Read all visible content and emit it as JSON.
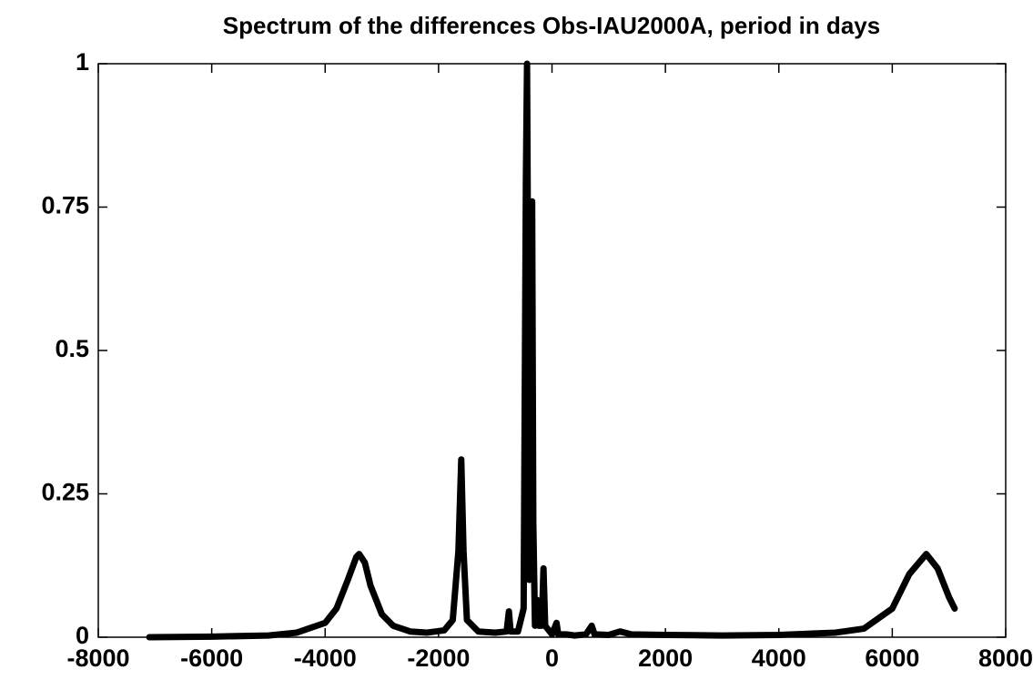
{
  "chart_data": {
    "type": "line",
    "title": "Spectrum of the differences Obs-IAU2000A, period in days",
    "x": [
      -7100,
      -6000,
      -5000,
      -4500,
      -4000,
      -3800,
      -3600,
      -3450,
      -3400,
      -3300,
      -3200,
      -3000,
      -2800,
      -2500,
      -2200,
      -1900,
      -1750,
      -1650,
      -1600,
      -1560,
      -1500,
      -1300,
      -1000,
      -800,
      -760,
      -730,
      -600,
      -500,
      -460,
      -440,
      -420,
      -400,
      -370,
      -350,
      -330,
      -300,
      -260,
      -230,
      -180,
      -150,
      -120,
      0,
      80,
      110,
      250,
      400,
      600,
      700,
      750,
      1000,
      1200,
      1400,
      2000,
      3000,
      4000,
      5000,
      5500,
      6000,
      6300,
      6600,
      6800,
      7000,
      7100
    ],
    "values": [
      0,
      0.001,
      0.003,
      0.008,
      0.025,
      0.05,
      0.1,
      0.14,
      0.145,
      0.13,
      0.09,
      0.04,
      0.02,
      0.01,
      0.008,
      0.012,
      0.03,
      0.15,
      0.31,
      0.15,
      0.03,
      0.01,
      0.008,
      0.01,
      0.045,
      0.01,
      0.01,
      0.05,
      0.8,
      1.0,
      0.6,
      0.1,
      0.3,
      0.76,
      0.2,
      0.02,
      0.065,
      0.02,
      0.02,
      0.12,
      0.02,
      0.005,
      0.025,
      0.005,
      0.005,
      0.003,
      0.005,
      0.02,
      0.005,
      0.004,
      0.01,
      0.005,
      0.004,
      0.003,
      0.004,
      0.008,
      0.015,
      0.05,
      0.11,
      0.145,
      0.12,
      0.07,
      0.05
    ],
    "color": "#000000",
    "xlim": [
      -8000,
      8000
    ],
    "xticks": [
      -8000,
      -6000,
      -4000,
      -2000,
      0,
      2000,
      4000,
      6000,
      8000
    ],
    "ylim": [
      0,
      1
    ],
    "yticks": [
      0,
      0.25,
      0.5,
      0.75,
      1
    ],
    "grid": false
  }
}
